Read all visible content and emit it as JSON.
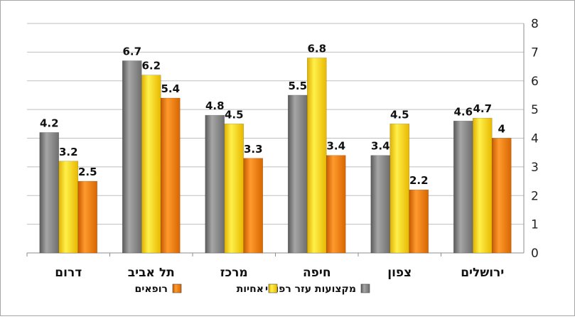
{
  "chart_data": {
    "type": "bar",
    "title": "",
    "xlabel": "",
    "ylabel": "",
    "ylim": [
      0,
      8
    ],
    "yticks": [
      0,
      1,
      2,
      3,
      4,
      5,
      6,
      7,
      8
    ],
    "y_axis_side": "right",
    "grid": true,
    "legend_position": "bottom",
    "category_order": "right-to-left",
    "categories": [
      "ירושלים",
      "צפון",
      "חיפה",
      "מרכז",
      "תל אביב",
      "דרום"
    ],
    "series": [
      {
        "name": "מקצועות עזר רפואי",
        "color": "#7f7f7f",
        "values": [
          4.6,
          3.4,
          5.5,
          4.8,
          6.7,
          4.2
        ]
      },
      {
        "name": "אחיות",
        "color": "#ffd700",
        "values": [
          4.7,
          4.5,
          6.8,
          4.5,
          6.2,
          3.2
        ]
      },
      {
        "name": "רופאים",
        "color": "#ee7700",
        "values": [
          4,
          2.2,
          3.4,
          3.3,
          5.4,
          2.5
        ]
      }
    ]
  }
}
